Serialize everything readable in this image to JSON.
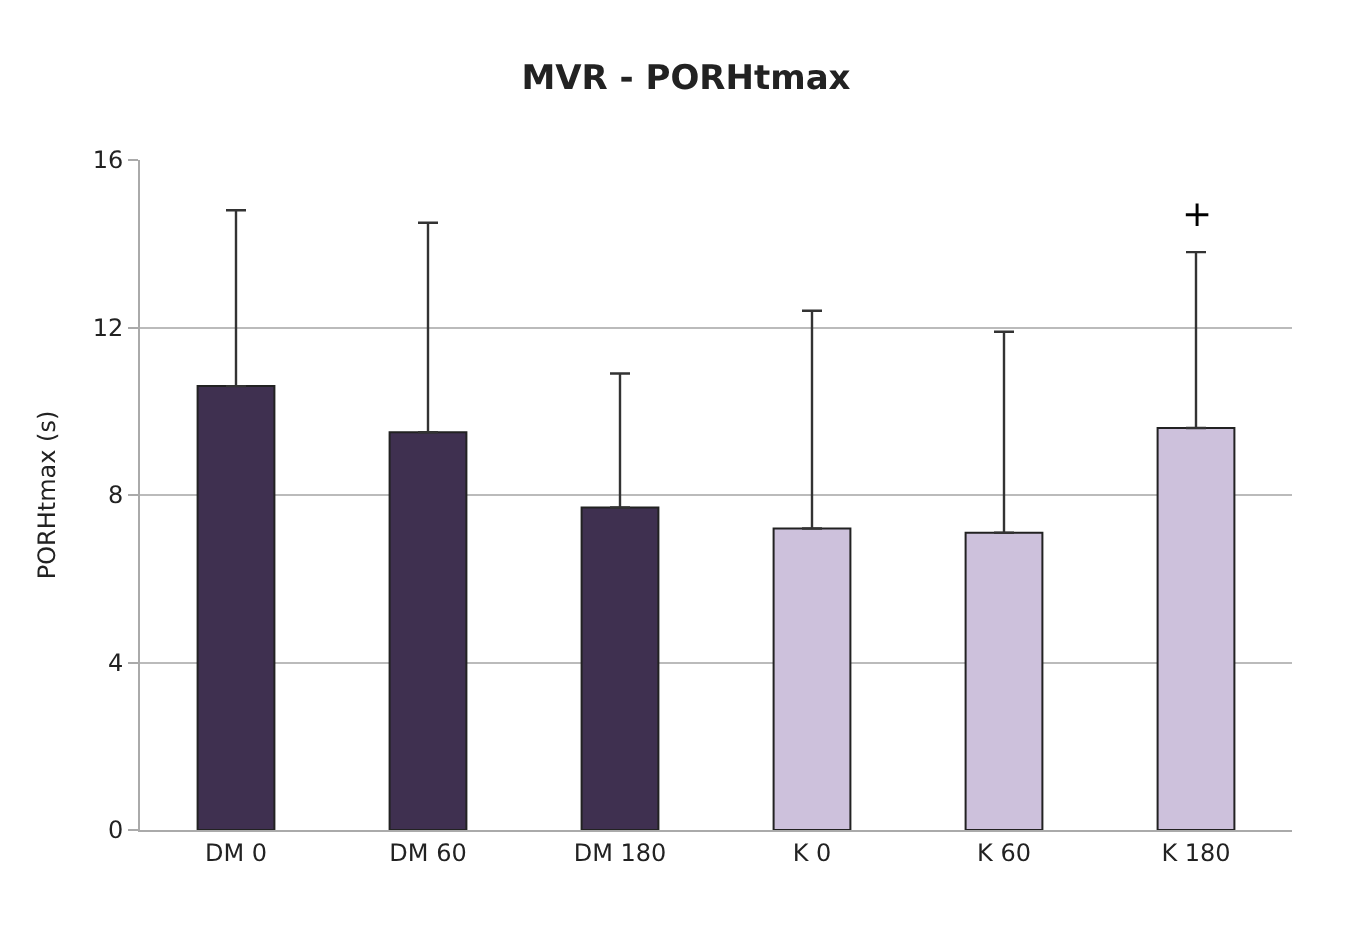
{
  "chart_data": {
    "type": "bar",
    "title": "MVR - PORHtmax",
    "ylabel": "PORHtmax (s)",
    "categories": [
      "DM 0",
      "DM 60",
      "DM 180",
      "K 0",
      "K 60",
      "K 180"
    ],
    "values": [
      10.6,
      9.5,
      7.7,
      7.2,
      7.1,
      9.6
    ],
    "colors": [
      "#3f3050",
      "#3f3050",
      "#3f3050",
      "#cdc1dc",
      "#cdc1dc",
      "#cdc1dc"
    ],
    "errors": [
      [
        10.6,
        14.8
      ],
      [
        9.5,
        14.5
      ],
      [
        7.7,
        10.9
      ],
      [
        7.2,
        12.4
      ],
      [
        7.1,
        11.9
      ],
      [
        9.6,
        13.8
      ]
    ],
    "annotations": [
      "+"
    ],
    "ylim": [
      0,
      16
    ],
    "yticks": [
      0,
      4,
      8,
      12,
      16
    ],
    "grid": "y"
  }
}
